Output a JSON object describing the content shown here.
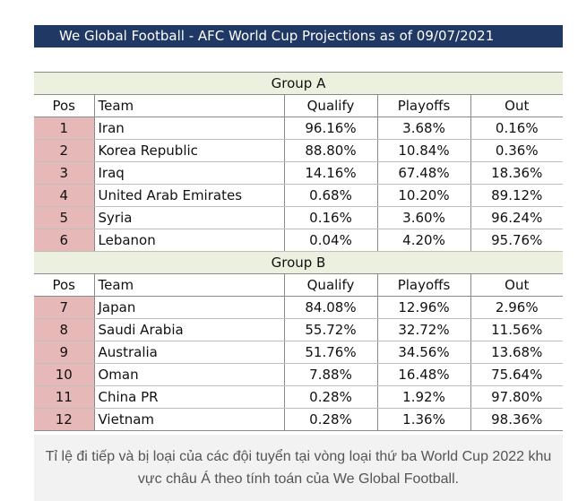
{
  "title": "We Global Football - AFC World Cup Projections as of 09/07/2021",
  "headers": {
    "pos": "Pos",
    "team": "Team",
    "qualify": "Qualify",
    "playoffs": "Playoffs",
    "out": "Out"
  },
  "groups": [
    {
      "name": "Group A",
      "rows": [
        {
          "pos": "1",
          "team": "Iran",
          "qualify": "96.16%",
          "playoffs": "3.68%",
          "out": "0.16%"
        },
        {
          "pos": "2",
          "team": "Korea Republic",
          "qualify": "88.80%",
          "playoffs": "10.84%",
          "out": "0.36%"
        },
        {
          "pos": "3",
          "team": "Iraq",
          "qualify": "14.16%",
          "playoffs": "67.48%",
          "out": "18.36%"
        },
        {
          "pos": "4",
          "team": "United Arab Emirates",
          "qualify": "0.68%",
          "playoffs": "10.20%",
          "out": "89.12%"
        },
        {
          "pos": "5",
          "team": "Syria",
          "qualify": "0.16%",
          "playoffs": "3.60%",
          "out": "96.24%"
        },
        {
          "pos": "6",
          "team": "Lebanon",
          "qualify": "0.04%",
          "playoffs": "4.20%",
          "out": "95.76%"
        }
      ]
    },
    {
      "name": "Group B",
      "rows": [
        {
          "pos": "7",
          "team": "Japan",
          "qualify": "84.08%",
          "playoffs": "12.96%",
          "out": "2.96%"
        },
        {
          "pos": "8",
          "team": "Saudi Arabia",
          "qualify": "55.72%",
          "playoffs": "32.72%",
          "out": "11.56%"
        },
        {
          "pos": "9",
          "team": "Australia",
          "qualify": "51.76%",
          "playoffs": "34.56%",
          "out": "13.68%"
        },
        {
          "pos": "10",
          "team": "Oman",
          "qualify": "7.88%",
          "playoffs": "16.48%",
          "out": "75.64%"
        },
        {
          "pos": "11",
          "team": "China PR",
          "qualify": "0.28%",
          "playoffs": "1.92%",
          "out": "97.80%"
        },
        {
          "pos": "12",
          "team": "Vietnam",
          "qualify": "0.28%",
          "playoffs": "1.36%",
          "out": "98.36%"
        }
      ]
    }
  ],
  "caption": "Tỉ lệ đi tiếp và bị loại của các đội tuyển tại vòng loại thứ ba World Cup 2022 khu vực châu Á theo tính toán của We Global Football."
}
